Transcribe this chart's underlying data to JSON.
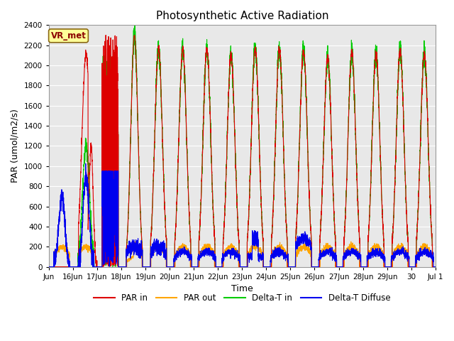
{
  "title": "Photosynthetic Active Radiation",
  "xlabel": "Time",
  "ylabel": "PAR (umol/m2/s)",
  "ylim": [
    0,
    2400
  ],
  "yticks": [
    0,
    200,
    400,
    600,
    800,
    1000,
    1200,
    1400,
    1600,
    1800,
    2000,
    2200,
    2400
  ],
  "colors": {
    "PAR_in": "#dd0000",
    "PAR_out": "#ffa500",
    "Delta_T_in": "#00cc00",
    "Delta_T_Diffuse": "#0000ee"
  },
  "legend_labels": [
    "PAR in",
    "PAR out",
    "Delta-T in",
    "Delta-T Diffuse"
  ],
  "xtick_labels": [
    "Jun",
    "16Jun",
    "17Jun",
    "18Jun",
    "19Jun",
    "20Jun",
    "21Jun",
    "22Jun",
    "23Jun",
    "24Jun",
    "25Jun",
    "26Jun",
    "27Jun",
    "28Jun",
    "29Jun",
    "30",
    "Jul 1"
  ],
  "annotation_text": "VR_met",
  "annotation_color": "#8b0000",
  "annotation_bg": "#ffff99",
  "plot_bg_color": "#e8e8e8",
  "grid_color": "#ffffff",
  "line_width": 0.8
}
